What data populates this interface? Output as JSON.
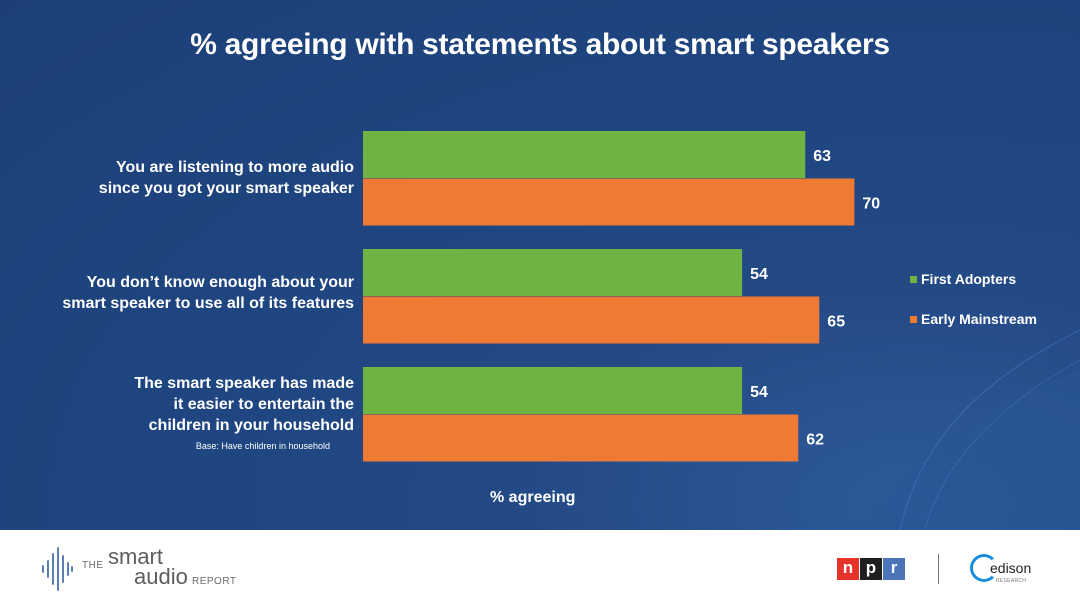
{
  "chart_data": {
    "type": "bar",
    "orientation": "horizontal",
    "title": "% agreeing with statements about smart speakers",
    "xlabel": "% agreeing",
    "ylabel": "",
    "xlim": [
      0,
      100
    ],
    "grid": false,
    "legend_position": "right",
    "categories": [
      {
        "lines": [
          "You are listening to more audio",
          "since you got your smart speaker"
        ],
        "note": ""
      },
      {
        "lines": [
          "You don’t know enough about your",
          "smart speaker to use all of its features"
        ],
        "note": ""
      },
      {
        "lines": [
          "The smart speaker has made",
          "it easier to entertain the",
          "children in your household"
        ],
        "note": "Base: Have children in household"
      }
    ],
    "series": [
      {
        "name": "First Adopters",
        "color": "#6fb442",
        "values": [
          63,
          54,
          54
        ]
      },
      {
        "name": "Early Mainstream",
        "color": "#ef7a33",
        "values": [
          70,
          65,
          62
        ]
      }
    ]
  },
  "footer": {
    "smart_audio_logo": {
      "the": "THE",
      "smart": "smart",
      "audio": "audio",
      "report": "REPORT"
    },
    "npr_logo": {
      "letters": [
        "n",
        "p",
        "r"
      ],
      "colors": [
        "#e5332a",
        "#1f1f1f",
        "#4b74b9"
      ]
    },
    "edison_logo": {
      "text": "edison",
      "subtext": "RESEARCH"
    }
  }
}
